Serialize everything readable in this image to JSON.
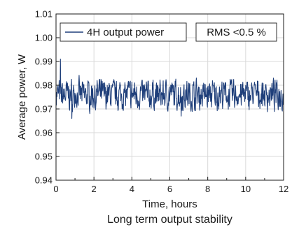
{
  "chart_data": {
    "type": "line",
    "caption": "Long term output stability",
    "xlabel": "Time, hours",
    "ylabel": "Average power, W",
    "xlim": [
      0,
      12
    ],
    "ylim": [
      0.94,
      1.01
    ],
    "x_ticks": [
      "0",
      "2",
      "4",
      "6",
      "8",
      "10",
      "12"
    ],
    "y_ticks": [
      "0.94",
      "0.95",
      "0.96",
      "0.97",
      "0.98",
      "0.99",
      "1.00",
      "1.01"
    ],
    "grid": true,
    "legend_position": "top-left",
    "series": [
      {
        "name": "4H output power",
        "color": "#1f3f7a",
        "mean": 0.976,
        "min": 0.966,
        "max": 0.991,
        "x_start": 0,
        "x_end": 12
      }
    ],
    "annotation": "RMS <0.5 %"
  }
}
